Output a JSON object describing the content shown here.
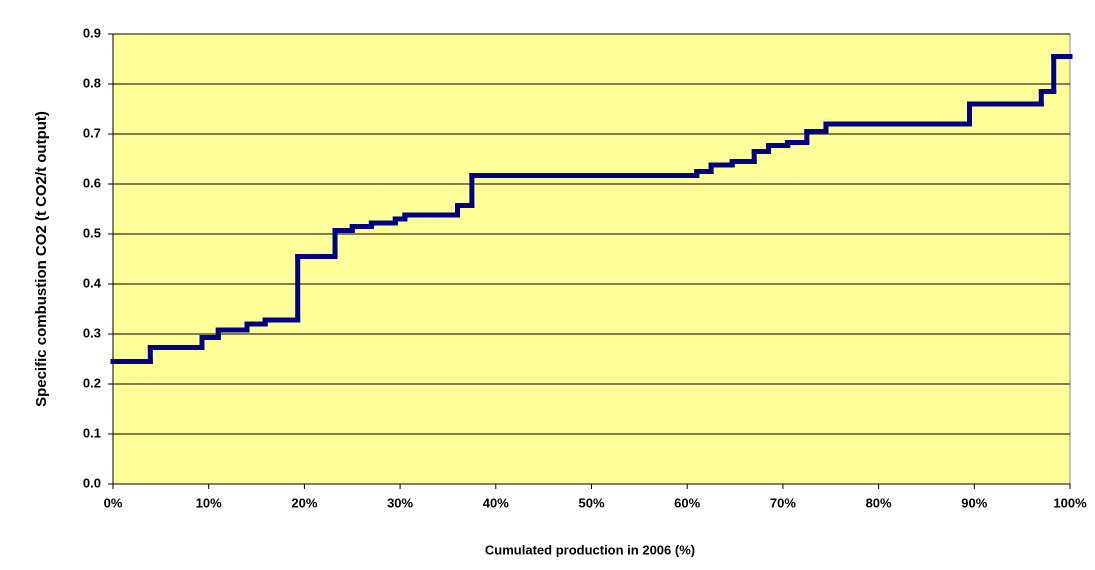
{
  "chart_data": {
    "type": "step",
    "xlabel": "Cumulated production in 2006 (%)",
    "ylabel": "Specific combustion CO2  (t CO2/t output)",
    "x": [
      0,
      3.9,
      9.3,
      11,
      14,
      15.9,
      19.3,
      23.2,
      25,
      27,
      29.5,
      30.5,
      36,
      37.5,
      61,
      62.5,
      64.7,
      67,
      68.5,
      70.5,
      72.5,
      74.5,
      89.5,
      97,
      98.3
    ],
    "values": [
      0.245,
      0.273,
      0.293,
      0.308,
      0.32,
      0.328,
      0.455,
      0.507,
      0.515,
      0.522,
      0.53,
      0.538,
      0.557,
      0.617,
      0.625,
      0.638,
      0.645,
      0.665,
      0.677,
      0.683,
      0.705,
      0.72,
      0.76,
      0.785,
      0.855
    ],
    "color": "#000080",
    "xlim": [
      0,
      100
    ],
    "xticks": [
      {
        "value": 0,
        "label": "0%"
      },
      {
        "value": 10,
        "label": "10%"
      },
      {
        "value": 20,
        "label": "20%"
      },
      {
        "value": 30,
        "label": "30%"
      },
      {
        "value": 40,
        "label": "40%"
      },
      {
        "value": 50,
        "label": "50%"
      },
      {
        "value": 60,
        "label": "60%"
      },
      {
        "value": 70,
        "label": "70%"
      },
      {
        "value": 80,
        "label": "80%"
      },
      {
        "value": 90,
        "label": "90%"
      },
      {
        "value": 100,
        "label": "100%"
      }
    ],
    "ylim": [
      0,
      0.9
    ],
    "yticks": [
      {
        "value": 0,
        "label": "0.0"
      },
      0.1,
      0.2,
      0.3,
      0.4,
      0.5,
      0.6,
      0.7,
      0.8,
      0.9
    ],
    "grid": true,
    "background": "#ffff99"
  }
}
